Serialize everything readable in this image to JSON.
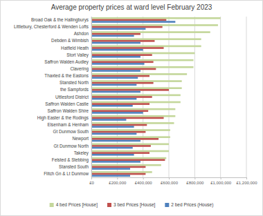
{
  "chart_data": {
    "type": "bar",
    "orientation": "horizontal",
    "title": "Average property prices at ward level February 2023",
    "categories": [
      "Broad Oak & the Hallingburys",
      "Littlebury, Chesterford & Wenden Lofts",
      "Ashdon",
      "Debden & Wimbish",
      "Hatfield Heath",
      "Stort Valley",
      "Saffron Walden Audley",
      "Clavering",
      "Thaxted & the Eastons",
      "Stansted North",
      "the Sampfords",
      "Uttlesford District",
      "Saffron Walden Castle",
      "Saffron Walden Shire",
      "High Easter & the Rodings",
      "Elsenham & Henham",
      "Gt Dunmow South",
      "Newport",
      "Gt Dunmow North",
      "Takeley",
      "Felsted & Stebbing",
      "Stansted South",
      "Flitch Gn & Lt Dunmow"
    ],
    "series": [
      {
        "name": "4 bed Prices [House]",
        "color": "#c4d79b",
        "values": [
          1000000,
          980000,
          920000,
          850000,
          850000,
          800000,
          790000,
          790000,
          740000,
          700000,
          700000,
          690000,
          690000,
          650000,
          650000,
          640000,
          610000,
          610000,
          600000,
          600000,
          580000,
          540000,
          470000
        ]
      },
      {
        "name": "3 bed Prices [House]",
        "color": "#c0504d",
        "values": [
          580000,
          550000,
          380000,
          490000,
          560000,
          470000,
          480000,
          500000,
          450000,
          480000,
          600000,
          470000,
          450000,
          440000,
          560000,
          430000,
          420000,
          520000,
          460000,
          450000,
          570000,
          420000,
          420000
        ]
      },
      {
        "name": "2 bed Prices (House)",
        "color": "#4f81bd",
        "values": [
          650000,
          420000,
          330000,
          380000,
          400000,
          380000,
          410000,
          380000,
          360000,
          350000,
          380000,
          350000,
          320000,
          400000,
          270000,
          330000,
          350000,
          380000,
          320000,
          330000,
          380000,
          300000,
          300000
        ]
      }
    ],
    "xlim": [
      0,
      1200000
    ],
    "xticks": [
      {
        "value": 0,
        "label": "£0"
      },
      {
        "value": 200000,
        "label": "£200,000"
      },
      {
        "value": 400000,
        "label": "£400,000"
      },
      {
        "value": 600000,
        "label": "£600,000"
      },
      {
        "value": 800000,
        "label": "£800,000"
      },
      {
        "value": 1000000,
        "label": "£1,000,000"
      },
      {
        "value": 1200000,
        "label": "£1,200,000"
      }
    ],
    "grid": true,
    "legend": "bottom"
  }
}
